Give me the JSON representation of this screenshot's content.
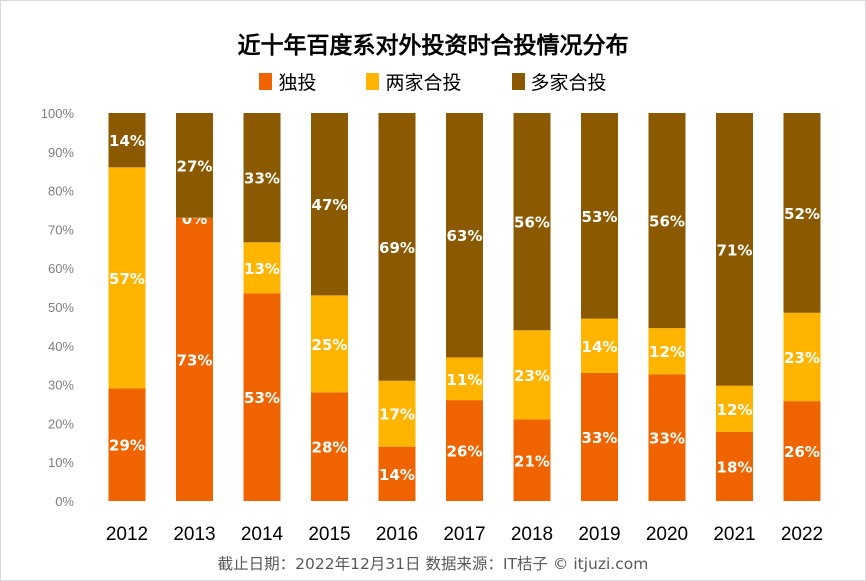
{
  "chart_data": {
    "type": "bar",
    "stacked": true,
    "percent": true,
    "title": "近十年百度系对外投资时合投情况分布",
    "categories": [
      "2012",
      "2013",
      "2014",
      "2015",
      "2016",
      "2017",
      "2018",
      "2019",
      "2020",
      "2021",
      "2022"
    ],
    "series": [
      {
        "name": "独投",
        "color": "#F06400",
        "values": [
          29,
          73,
          53,
          28,
          14,
          26,
          21,
          33,
          33,
          18,
          26
        ]
      },
      {
        "name": "两家合投",
        "color": "#FFB400",
        "values": [
          57,
          0,
          13,
          25,
          17,
          11,
          23,
          14,
          12,
          12,
          23
        ]
      },
      {
        "name": "多家合投",
        "color": "#8B5A00",
        "values": [
          14,
          27,
          33,
          47,
          69,
          63,
          56,
          53,
          56,
          71,
          52
        ]
      }
    ],
    "ylim": [
      0,
      100
    ],
    "yticks": [
      "0%",
      "10%",
      "20%",
      "30%",
      "40%",
      "50%",
      "60%",
      "70%",
      "80%",
      "90%",
      "100%"
    ],
    "grid": false,
    "legend_position": "top",
    "data_label_format": "{v}%",
    "footer": "截止日期：2022年12月31日    数据来源：IT桔子 © itjuzi.com"
  }
}
